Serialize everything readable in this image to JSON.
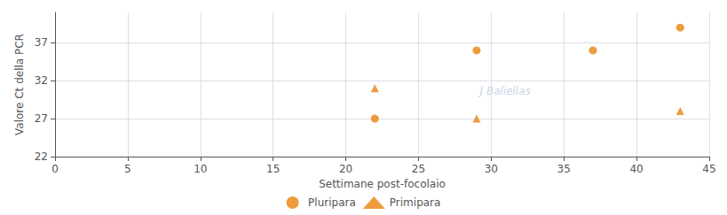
{
  "chart_data": {
    "type": "scatter",
    "xlabel": "Settimane post-focolaio",
    "ylabel": "Valore Ct della PCR",
    "annotations": [
      "J Baliellas"
    ],
    "series": [
      {
        "name": "Pluripara",
        "color": "#E8820C",
        "marker": "circle",
        "x": [
          22,
          29,
          37,
          43
        ],
        "values": [
          27,
          36,
          36,
          39
        ]
      },
      {
        "name": "Primipara",
        "color": "#E8820C",
        "marker": "triangle",
        "x": [
          22,
          29,
          43
        ],
        "values": [
          31,
          27,
          28
        ]
      }
    ],
    "xlim": [
      0,
      45
    ],
    "ylim": [
      22,
      41
    ],
    "xticks": [
      0,
      5,
      10,
      15,
      20,
      25,
      30,
      35,
      40,
      45
    ],
    "yticks": [
      22,
      27,
      32,
      37
    ],
    "grid": true,
    "legend": "bottom"
  }
}
